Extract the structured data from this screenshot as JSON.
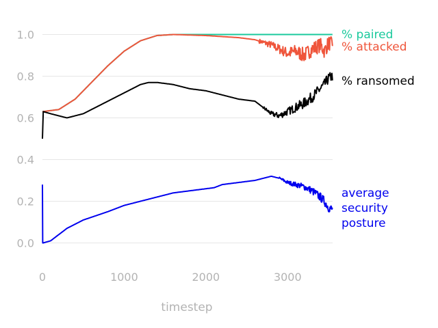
{
  "chart_data": {
    "type": "line",
    "title": "",
    "xlabel": "timestep",
    "ylabel": "",
    "xlim": [
      0,
      3550
    ],
    "ylim": [
      -0.1,
      1.1
    ],
    "grid": "horizontal",
    "legend": "direct labels at right end of lines",
    "x_ticks": [
      0,
      1000,
      2000,
      3000
    ],
    "x_tick_labels": [
      "0",
      "1000",
      "2000",
      "3000"
    ],
    "y_ticks": [
      0.0,
      0.2,
      0.4,
      0.6,
      0.8,
      1.0
    ],
    "y_tick_labels": [
      "0.0",
      "0.2",
      "0.4",
      "0.6",
      "0.8",
      "1.0"
    ],
    "series": [
      {
        "name": "% paired",
        "label_lines": [
          "% paired"
        ],
        "color": "#1ac99c",
        "x": [
          0,
          200,
          400,
          600,
          800,
          1000,
          1200,
          1400,
          1600,
          2000,
          2500,
          3000,
          3550
        ],
        "y": [
          0.63,
          0.64,
          0.69,
          0.77,
          0.85,
          0.92,
          0.97,
          0.995,
          1.0,
          1.0,
          1.0,
          1.0,
          1.0
        ]
      },
      {
        "name": "% attacked",
        "label_lines": [
          "% attacked"
        ],
        "color": "#ef553b",
        "x": [
          0,
          200,
          400,
          600,
          800,
          1000,
          1200,
          1400,
          1600,
          2000,
          2400,
          2600,
          2800,
          2900,
          3000,
          3100,
          3200,
          3300,
          3400,
          3450,
          3500,
          3550
        ],
        "y": [
          0.63,
          0.64,
          0.69,
          0.77,
          0.85,
          0.92,
          0.97,
          0.995,
          1.0,
          0.995,
          0.985,
          0.975,
          0.95,
          0.93,
          0.91,
          0.92,
          0.9,
          0.93,
          0.95,
          0.92,
          0.96,
          0.95
        ],
        "noise": 0.025,
        "noise_start": 2650
      },
      {
        "name": "% ransomed",
        "label_lines": [
          "% ransomed"
        ],
        "color": "#000000",
        "x": [
          0,
          10,
          100,
          300,
          500,
          800,
          1000,
          1200,
          1300,
          1400,
          1600,
          1800,
          2000,
          2200,
          2400,
          2600,
          2700,
          2800,
          2900,
          3000,
          3100,
          3200,
          3300,
          3400,
          3450,
          3500,
          3550
        ],
        "y": [
          0.5,
          0.63,
          0.62,
          0.6,
          0.62,
          0.68,
          0.72,
          0.76,
          0.77,
          0.77,
          0.76,
          0.74,
          0.73,
          0.71,
          0.69,
          0.68,
          0.65,
          0.62,
          0.61,
          0.63,
          0.65,
          0.67,
          0.7,
          0.74,
          0.76,
          0.79,
          0.8
        ],
        "noise": 0.018,
        "noise_start": 2700
      },
      {
        "name": "average security posture",
        "label_lines": [
          "average",
          "security",
          "posture"
        ],
        "color": "#0000ee",
        "x": [
          0,
          3,
          10,
          100,
          200,
          300,
          500,
          800,
          1000,
          1200,
          1400,
          1600,
          1800,
          2000,
          2100,
          2200,
          2400,
          2600,
          2800,
          2900,
          3000,
          3100,
          3200,
          3300,
          3400,
          3450,
          3500,
          3550
        ],
        "y": [
          0.28,
          0.0,
          0.0,
          0.01,
          0.04,
          0.07,
          0.11,
          0.15,
          0.18,
          0.2,
          0.22,
          0.24,
          0.25,
          0.26,
          0.265,
          0.28,
          0.29,
          0.3,
          0.32,
          0.31,
          0.29,
          0.28,
          0.27,
          0.25,
          0.22,
          0.2,
          0.17,
          0.16
        ],
        "noise": 0.015,
        "noise_start": 2900
      }
    ]
  }
}
